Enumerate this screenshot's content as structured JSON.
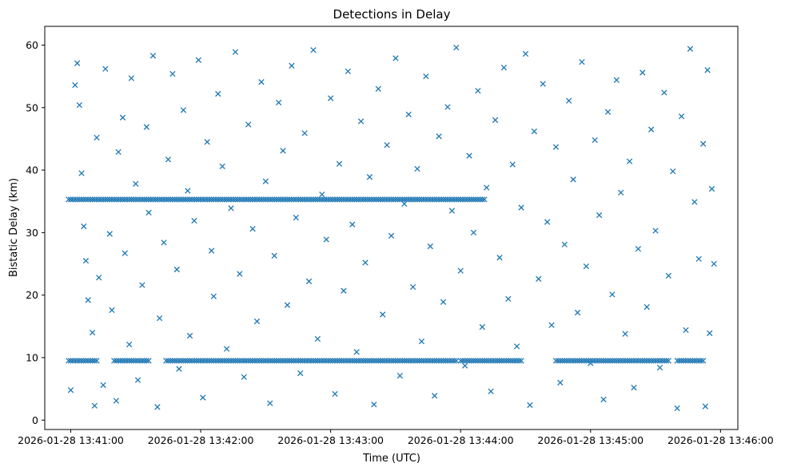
{
  "chart_data": {
    "type": "scatter",
    "title": "Detections in Delay",
    "xlabel": "Time (UTC)",
    "ylabel": "Bistatic Delay (km)",
    "marker": "x",
    "color": "#1f77b4",
    "grid": false,
    "xlim": [
      "2026-01-28 13:40:48",
      "2026-01-28 13:46:08"
    ],
    "ylim": [
      -1.5,
      63
    ],
    "x_ticks": [
      "2026-01-28 13:41:00",
      "2026-01-28 13:42:00",
      "2026-01-28 13:43:00",
      "2026-01-28 13:44:00",
      "2026-01-28 13:45:00",
      "2026-01-28 13:46:00"
    ],
    "y_ticks": [
      0,
      10,
      20,
      30,
      40,
      50,
      60
    ],
    "bands": [
      {
        "y": 35.3,
        "segments": [
          [
            "2026-01-28 13:40:59",
            "2026-01-28 13:43:58"
          ],
          [
            "2026-01-28 13:43:59",
            "2026-01-28 13:44:11"
          ]
        ]
      },
      {
        "y": 9.5,
        "segments": [
          [
            "2026-01-28 13:40:59",
            "2026-01-28 13:41:12"
          ],
          [
            "2026-01-28 13:41:20",
            "2026-01-28 13:41:36"
          ],
          [
            "2026-01-28 13:41:44",
            "2026-01-28 13:43:58"
          ],
          [
            "2026-01-28 13:44:00",
            "2026-01-28 13:44:28"
          ],
          [
            "2026-01-28 13:44:44",
            "2026-01-28 13:45:36"
          ],
          [
            "2026-01-28 13:45:40",
            "2026-01-28 13:45:52"
          ]
        ]
      }
    ],
    "points": [
      [
        "2026-01-28 13:41:00",
        4.8
      ],
      [
        "2026-01-28 13:41:02",
        53.6
      ],
      [
        "2026-01-28 13:41:03",
        57.1
      ],
      [
        "2026-01-28 13:41:04",
        50.4
      ],
      [
        "2026-01-28 13:41:05",
        39.5
      ],
      [
        "2026-01-28 13:41:06",
        31.0
      ],
      [
        "2026-01-28 13:41:07",
        25.5
      ],
      [
        "2026-01-28 13:41:08",
        19.2
      ],
      [
        "2026-01-28 13:41:10",
        14.0
      ],
      [
        "2026-01-28 13:41:11",
        2.3
      ],
      [
        "2026-01-28 13:41:12",
        45.2
      ],
      [
        "2026-01-28 13:41:13",
        22.8
      ],
      [
        "2026-01-28 13:41:15",
        5.6
      ],
      [
        "2026-01-28 13:41:16",
        56.2
      ],
      [
        "2026-01-28 13:41:18",
        29.8
      ],
      [
        "2026-01-28 13:41:19",
        17.6
      ],
      [
        "2026-01-28 13:41:21",
        3.1
      ],
      [
        "2026-01-28 13:41:22",
        42.9
      ],
      [
        "2026-01-28 13:41:24",
        48.4
      ],
      [
        "2026-01-28 13:41:25",
        26.7
      ],
      [
        "2026-01-28 13:41:27",
        12.1
      ],
      [
        "2026-01-28 13:41:28",
        54.7
      ],
      [
        "2026-01-28 13:41:30",
        37.8
      ],
      [
        "2026-01-28 13:41:31",
        6.4
      ],
      [
        "2026-01-28 13:41:33",
        21.6
      ],
      [
        "2026-01-28 13:41:35",
        46.9
      ],
      [
        "2026-01-28 13:41:36",
        33.2
      ],
      [
        "2026-01-28 13:41:38",
        58.3
      ],
      [
        "2026-01-28 13:41:40",
        2.1
      ],
      [
        "2026-01-28 13:41:41",
        16.3
      ],
      [
        "2026-01-28 13:41:43",
        28.4
      ],
      [
        "2026-01-28 13:41:45",
        41.7
      ],
      [
        "2026-01-28 13:41:47",
        55.4
      ],
      [
        "2026-01-28 13:41:49",
        24.1
      ],
      [
        "2026-01-28 13:41:50",
        8.2
      ],
      [
        "2026-01-28 13:41:52",
        49.6
      ],
      [
        "2026-01-28 13:41:54",
        36.7
      ],
      [
        "2026-01-28 13:41:55",
        13.5
      ],
      [
        "2026-01-28 13:41:57",
        31.9
      ],
      [
        "2026-01-28 13:41:59",
        57.6
      ],
      [
        "2026-01-28 13:42:01",
        3.6
      ],
      [
        "2026-01-28 13:42:03",
        44.5
      ],
      [
        "2026-01-28 13:42:05",
        27.1
      ],
      [
        "2026-01-28 13:42:06",
        19.8
      ],
      [
        "2026-01-28 13:42:08",
        52.2
      ],
      [
        "2026-01-28 13:42:10",
        40.6
      ],
      [
        "2026-01-28 13:42:12",
        11.4
      ],
      [
        "2026-01-28 13:42:14",
        33.9
      ],
      [
        "2026-01-28 13:42:16",
        58.9
      ],
      [
        "2026-01-28 13:42:18",
        23.4
      ],
      [
        "2026-01-28 13:42:20",
        6.9
      ],
      [
        "2026-01-28 13:42:22",
        47.3
      ],
      [
        "2026-01-28 13:42:24",
        30.6
      ],
      [
        "2026-01-28 13:42:26",
        15.8
      ],
      [
        "2026-01-28 13:42:28",
        54.1
      ],
      [
        "2026-01-28 13:42:30",
        38.2
      ],
      [
        "2026-01-28 13:42:32",
        2.7
      ],
      [
        "2026-01-28 13:42:34",
        26.3
      ],
      [
        "2026-01-28 13:42:36",
        50.8
      ],
      [
        "2026-01-28 13:42:38",
        43.1
      ],
      [
        "2026-01-28 13:42:40",
        18.4
      ],
      [
        "2026-01-28 13:42:42",
        56.7
      ],
      [
        "2026-01-28 13:42:44",
        32.4
      ],
      [
        "2026-01-28 13:42:46",
        7.5
      ],
      [
        "2026-01-28 13:42:48",
        45.9
      ],
      [
        "2026-01-28 13:42:50",
        22.2
      ],
      [
        "2026-01-28 13:42:52",
        59.2
      ],
      [
        "2026-01-28 13:42:54",
        13.0
      ],
      [
        "2026-01-28 13:42:56",
        36.1
      ],
      [
        "2026-01-28 13:42:58",
        28.9
      ],
      [
        "2026-01-28 13:43:00",
        51.5
      ],
      [
        "2026-01-28 13:43:02",
        4.2
      ],
      [
        "2026-01-28 13:43:04",
        41.0
      ],
      [
        "2026-01-28 13:43:06",
        20.7
      ],
      [
        "2026-01-28 13:43:08",
        55.8
      ],
      [
        "2026-01-28 13:43:10",
        31.3
      ],
      [
        "2026-01-28 13:43:12",
        10.9
      ],
      [
        "2026-01-28 13:43:14",
        47.8
      ],
      [
        "2026-01-28 13:43:16",
        25.2
      ],
      [
        "2026-01-28 13:43:18",
        38.9
      ],
      [
        "2026-01-28 13:43:20",
        2.5
      ],
      [
        "2026-01-28 13:43:22",
        53.0
      ],
      [
        "2026-01-28 13:43:24",
        16.9
      ],
      [
        "2026-01-28 13:43:26",
        44.0
      ],
      [
        "2026-01-28 13:43:28",
        29.5
      ],
      [
        "2026-01-28 13:43:30",
        57.9
      ],
      [
        "2026-01-28 13:43:32",
        7.1
      ],
      [
        "2026-01-28 13:43:34",
        34.6
      ],
      [
        "2026-01-28 13:43:36",
        48.9
      ],
      [
        "2026-01-28 13:43:38",
        21.3
      ],
      [
        "2026-01-28 13:43:40",
        40.2
      ],
      [
        "2026-01-28 13:43:42",
        12.6
      ],
      [
        "2026-01-28 13:43:44",
        55.0
      ],
      [
        "2026-01-28 13:43:46",
        27.8
      ],
      [
        "2026-01-28 13:43:48",
        3.9
      ],
      [
        "2026-01-28 13:43:50",
        45.4
      ],
      [
        "2026-01-28 13:43:52",
        18.9
      ],
      [
        "2026-01-28 13:43:54",
        50.1
      ],
      [
        "2026-01-28 13:43:56",
        33.5
      ],
      [
        "2026-01-28 13:43:58",
        59.6
      ],
      [
        "2026-01-28 13:44:00",
        23.9
      ],
      [
        "2026-01-28 13:44:02",
        8.7
      ],
      [
        "2026-01-28 13:44:04",
        42.3
      ],
      [
        "2026-01-28 13:44:06",
        30.0
      ],
      [
        "2026-01-28 13:44:08",
        52.7
      ],
      [
        "2026-01-28 13:44:10",
        14.9
      ],
      [
        "2026-01-28 13:44:12",
        37.2
      ],
      [
        "2026-01-28 13:44:14",
        4.6
      ],
      [
        "2026-01-28 13:44:16",
        48.0
      ],
      [
        "2026-01-28 13:44:18",
        26.0
      ],
      [
        "2026-01-28 13:44:20",
        56.4
      ],
      [
        "2026-01-28 13:44:22",
        19.4
      ],
      [
        "2026-01-28 13:44:24",
        40.9
      ],
      [
        "2026-01-28 13:44:26",
        11.8
      ],
      [
        "2026-01-28 13:44:28",
        34.0
      ],
      [
        "2026-01-28 13:44:30",
        58.6
      ],
      [
        "2026-01-28 13:44:32",
        2.4
      ],
      [
        "2026-01-28 13:44:34",
        46.2
      ],
      [
        "2026-01-28 13:44:36",
        22.6
      ],
      [
        "2026-01-28 13:44:38",
        53.8
      ],
      [
        "2026-01-28 13:44:40",
        31.7
      ],
      [
        "2026-01-28 13:44:42",
        15.2
      ],
      [
        "2026-01-28 13:44:44",
        43.7
      ],
      [
        "2026-01-28 13:44:46",
        6.0
      ],
      [
        "2026-01-28 13:44:48",
        28.1
      ],
      [
        "2026-01-28 13:44:50",
        51.1
      ],
      [
        "2026-01-28 13:44:52",
        38.5
      ],
      [
        "2026-01-28 13:44:54",
        17.2
      ],
      [
        "2026-01-28 13:44:56",
        57.3
      ],
      [
        "2026-01-28 13:44:58",
        24.6
      ],
      [
        "2026-01-28 13:45:00",
        9.1
      ],
      [
        "2026-01-28 13:45:02",
        44.8
      ],
      [
        "2026-01-28 13:45:04",
        32.8
      ],
      [
        "2026-01-28 13:45:06",
        3.3
      ],
      [
        "2026-01-28 13:45:08",
        49.3
      ],
      [
        "2026-01-28 13:45:10",
        20.1
      ],
      [
        "2026-01-28 13:45:12",
        54.4
      ],
      [
        "2026-01-28 13:45:14",
        36.4
      ],
      [
        "2026-01-28 13:45:16",
        13.8
      ],
      [
        "2026-01-28 13:45:18",
        41.4
      ],
      [
        "2026-01-28 13:45:20",
        5.2
      ],
      [
        "2026-01-28 13:45:22",
        27.4
      ],
      [
        "2026-01-28 13:45:24",
        55.6
      ],
      [
        "2026-01-28 13:45:26",
        18.1
      ],
      [
        "2026-01-28 13:45:28",
        46.5
      ],
      [
        "2026-01-28 13:45:30",
        30.3
      ],
      [
        "2026-01-28 13:45:32",
        8.4
      ],
      [
        "2026-01-28 13:45:34",
        52.4
      ],
      [
        "2026-01-28 13:45:36",
        23.1
      ],
      [
        "2026-01-28 13:45:38",
        39.8
      ],
      [
        "2026-01-28 13:45:40",
        1.9
      ],
      [
        "2026-01-28 13:45:42",
        48.6
      ],
      [
        "2026-01-28 13:45:44",
        14.4
      ],
      [
        "2026-01-28 13:45:46",
        59.4
      ],
      [
        "2026-01-28 13:45:48",
        34.9
      ],
      [
        "2026-01-28 13:45:50",
        25.8
      ],
      [
        "2026-01-28 13:45:52",
        44.2
      ],
      [
        "2026-01-28 13:45:53",
        2.2
      ],
      [
        "2026-01-28 13:45:54",
        56.0
      ],
      [
        "2026-01-28 13:45:55",
        13.9
      ],
      [
        "2026-01-28 13:45:56",
        37.0
      ],
      [
        "2026-01-28 13:45:57",
        25.0
      ]
    ]
  }
}
